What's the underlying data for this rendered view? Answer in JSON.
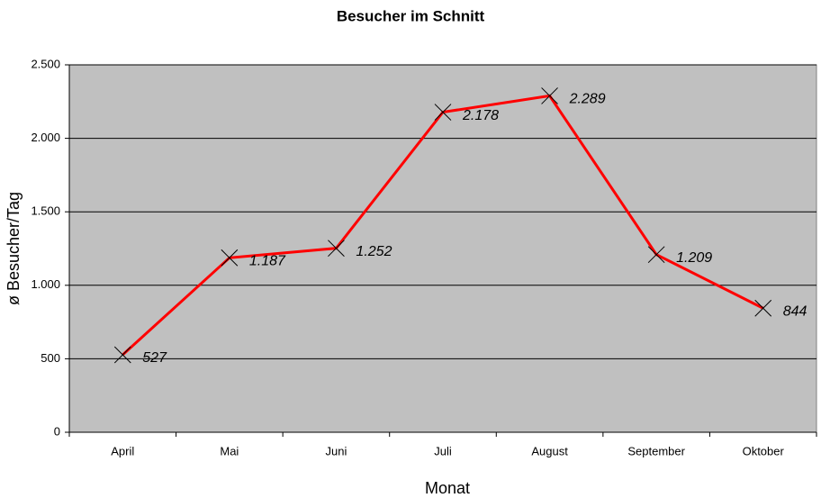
{
  "chart_data": {
    "type": "line",
    "title": "Besucher im Schnitt",
    "x_label": "Monat",
    "y_label": "ø Besucher/Tag",
    "categories": [
      "April",
      "Mai",
      "Juni",
      "Juli",
      "August",
      "September",
      "Oktober"
    ],
    "values": [
      527,
      1187,
      1252,
      2178,
      2289,
      1209,
      844
    ],
    "value_labels": [
      "527",
      "1.187",
      "1.252",
      "2.178",
      "2.289",
      "1.209",
      "844"
    ],
    "color": "#ff0000",
    "marker_color": "#000000",
    "plot_background": "#c0c0c0",
    "ylim": [
      0,
      2500
    ],
    "yticks": [
      0,
      500,
      {
        "value": 1000,
        "label": "1.000"
      },
      {
        "value": 1500,
        "label": "1.500"
      },
      {
        "value": 2000,
        "label": "2.000"
      },
      {
        "value": 2500,
        "label": "2.500"
      }
    ],
    "grid": true
  }
}
